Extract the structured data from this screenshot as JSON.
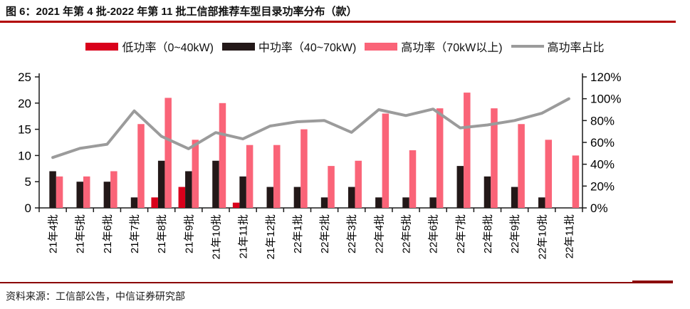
{
  "header": {
    "title": "图 6：2021 年第 4 批-2022 年第 11 批工信部推荐车型目录功率分布（款）"
  },
  "footer": {
    "source": "资料来源：工信部公告，中信证券研究部"
  },
  "colors": {
    "low": "#D9001B",
    "mid": "#231818",
    "high": "#FA6478",
    "ratio_line": "#9B9B9B",
    "title_rule": "#B20000",
    "footer_rule": "#8B0000",
    "axis": "#1A1A1A"
  },
  "chart_data": {
    "type": "bar",
    "subtype": "grouped-bars-with-line",
    "categories": [
      "21年4批",
      "21年5批",
      "21年6批",
      "21年7批",
      "21年8批",
      "21年9批",
      "21年10批",
      "21年11批",
      "21年12批",
      "22年1批",
      "22年2批",
      "22年3批",
      "22年4批",
      "22年5批",
      "22年6批",
      "22年7批",
      "22年8批",
      "22年9批",
      "22年10批",
      "22年11批"
    ],
    "series": [
      {
        "name": "低功率（0~40kW)",
        "type": "bar",
        "axis": "left",
        "color_key": "low",
        "values": [
          0,
          0,
          0,
          0,
          2,
          4,
          0,
          1,
          0,
          0,
          0,
          0,
          0,
          0,
          0,
          0,
          0,
          0,
          0,
          0
        ]
      },
      {
        "name": "中功率（40~70kW)",
        "type": "bar",
        "axis": "left",
        "color_key": "mid",
        "values": [
          7,
          5,
          5,
          2,
          9,
          7,
          9,
          6,
          4,
          4,
          2,
          4,
          2,
          2,
          2,
          8,
          6,
          4,
          2,
          0
        ]
      },
      {
        "name": "高功率（70kW以上)",
        "type": "bar",
        "axis": "left",
        "color_key": "high",
        "values": [
          6,
          6,
          7,
          16,
          21,
          13,
          20,
          12,
          12,
          15,
          8,
          9,
          18,
          11,
          19,
          22,
          19,
          16,
          13,
          10
        ]
      },
      {
        "name": "高功率占比",
        "type": "line",
        "axis": "right",
        "color_key": "ratio_line",
        "values": [
          46.2,
          54.5,
          58.3,
          88.9,
          65.6,
          54.2,
          69.0,
          63.2,
          75.0,
          78.9,
          80.0,
          69.2,
          90.0,
          84.6,
          90.5,
          73.3,
          76.0,
          80.0,
          86.7,
          100.0
        ]
      }
    ],
    "left_axis": {
      "min": 0,
      "max": 25,
      "step": 5
    },
    "right_axis": {
      "min": 0,
      "max": 120,
      "step": 20,
      "suffix": "%"
    },
    "legend_position": "top",
    "grid": false
  }
}
